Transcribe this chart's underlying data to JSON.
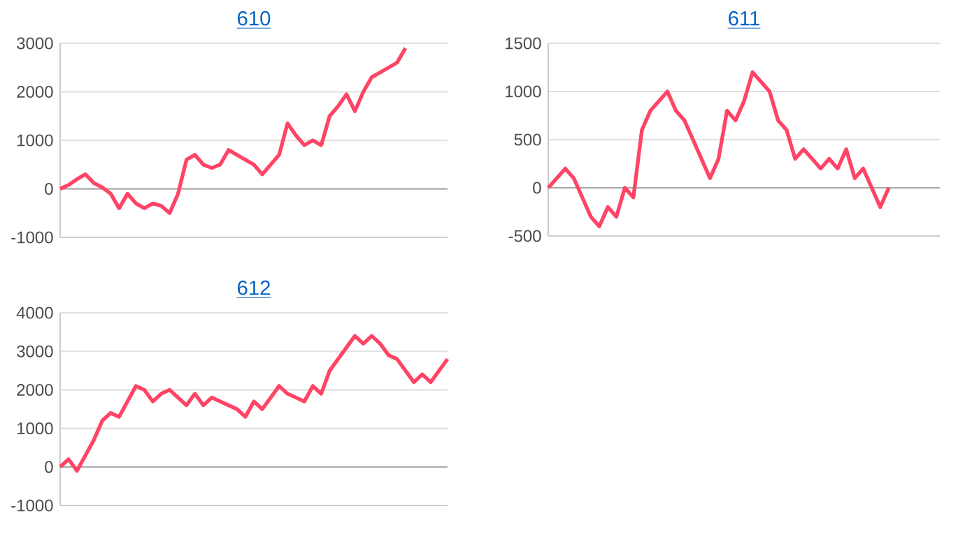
{
  "chart_data": [
    {
      "type": "line",
      "title": "610",
      "categories": [
        null,
        null,
        null,
        null,
        null,
        null,
        null,
        null,
        null,
        null,
        null,
        null,
        null,
        null,
        null,
        null,
        null,
        null,
        null,
        null,
        null,
        null,
        null,
        null,
        null,
        null,
        null,
        null,
        null,
        null,
        null,
        null,
        null,
        null,
        null,
        null,
        null,
        null,
        null,
        null,
        null,
        null,
        null,
        null,
        null,
        null,
        null
      ],
      "series": [
        {
          "color": "#ff4466",
          "values": [
            0,
            80,
            200,
            300,
            120,
            30,
            -100,
            -400,
            -100,
            -300,
            -400,
            -300,
            -350,
            -500,
            -100,
            600,
            700,
            500,
            430,
            500,
            800,
            700,
            600,
            500,
            300,
            500,
            700,
            1350,
            1100,
            900,
            1000,
            900,
            1500,
            1700,
            1950,
            1600,
            2000,
            2300,
            2400,
            2500,
            2600,
            2900,
            null,
            null,
            null,
            null,
            null
          ]
        }
      ],
      "ylim": [
        -1000,
        3000
      ],
      "yticks": [
        -1000,
        0,
        1000,
        2000,
        3000
      ],
      "grid": "y",
      "tick_labels": "y",
      "marker": "none",
      "line_style": "solid"
    },
    {
      "type": "line",
      "title": "611",
      "categories": [
        null,
        null,
        null,
        null,
        null,
        null,
        null,
        null,
        null,
        null,
        null,
        null,
        null,
        null,
        null,
        null,
        null,
        null,
        null,
        null,
        null,
        null,
        null,
        null,
        null,
        null,
        null,
        null,
        null,
        null,
        null,
        null,
        null,
        null,
        null,
        null,
        null,
        null,
        null,
        null,
        null,
        null,
        null,
        null,
        null,
        null,
        null
      ],
      "series": [
        {
          "color": "#ff4466",
          "values": [
            0,
            100,
            200,
            100,
            -100,
            -300,
            -400,
            -200,
            -300,
            0,
            -100,
            600,
            800,
            900,
            1000,
            800,
            700,
            500,
            300,
            100,
            300,
            800,
            700,
            900,
            1200,
            1100,
            1000,
            700,
            600,
            300,
            400,
            300,
            200,
            300,
            200,
            400,
            100,
            200,
            0,
            -200,
            0,
            null,
            null,
            null,
            null,
            null,
            null
          ]
        }
      ],
      "ylim": [
        -500,
        1500
      ],
      "yticks": [
        -500,
        0,
        500,
        1000,
        1500
      ],
      "grid": "y",
      "tick_labels": "y",
      "marker": "none",
      "line_style": "solid"
    },
    {
      "type": "line",
      "title": "612",
      "categories": [
        null,
        null,
        null,
        null,
        null,
        null,
        null,
        null,
        null,
        null,
        null,
        null,
        null,
        null,
        null,
        null,
        null,
        null,
        null,
        null,
        null,
        null,
        null,
        null,
        null,
        null,
        null,
        null,
        null,
        null,
        null,
        null,
        null,
        null,
        null,
        null,
        null,
        null,
        null,
        null,
        null,
        null,
        null,
        null,
        null,
        null,
        null
      ],
      "series": [
        {
          "color": "#ff4466",
          "values": [
            0,
            200,
            -100,
            300,
            700,
            1200,
            1400,
            1300,
            1700,
            2100,
            2000,
            1700,
            1900,
            2000,
            1800,
            1600,
            1900,
            1600,
            1800,
            1700,
            1600,
            1500,
            1300,
            1700,
            1500,
            1800,
            2100,
            1900,
            1800,
            1700,
            2100,
            1900,
            2500,
            2800,
            3100,
            3400,
            3200,
            3400,
            3200,
            2900,
            2800,
            2500,
            2200,
            2400,
            2200,
            2500,
            2800
          ]
        }
      ],
      "ylim": [
        -1000,
        4000
      ],
      "yticks": [
        -1000,
        0,
        1000,
        2000,
        3000,
        4000
      ],
      "grid": "y",
      "tick_labels": "y",
      "marker": "none",
      "line_style": "solid"
    }
  ]
}
